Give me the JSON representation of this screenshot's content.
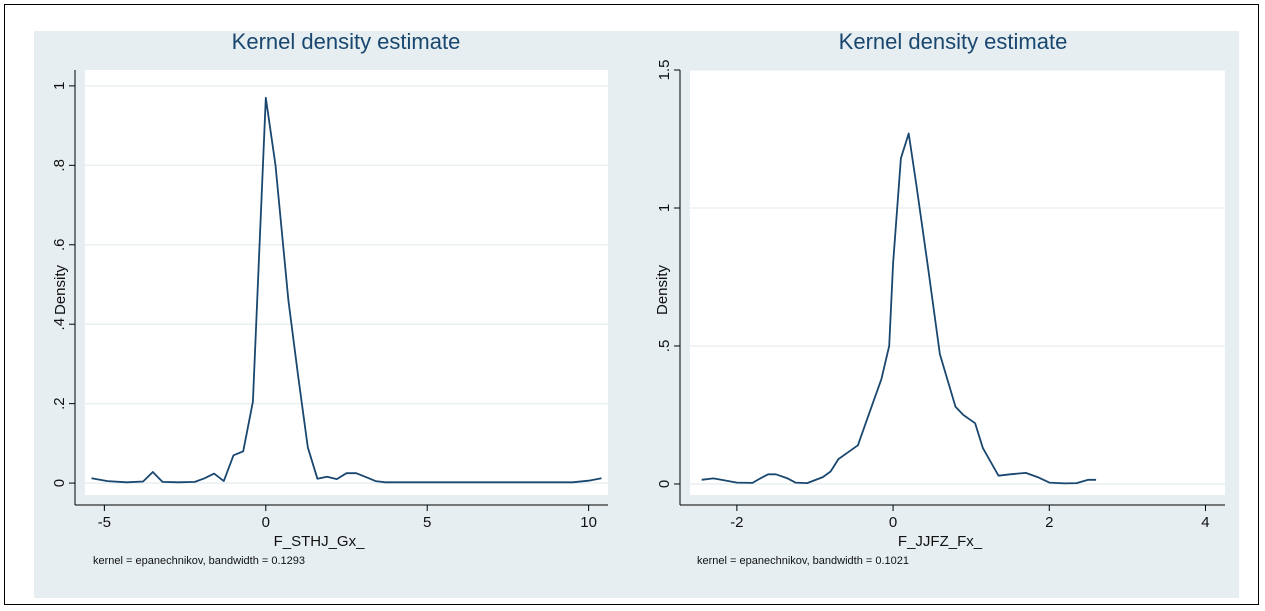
{
  "chart_data": [
    {
      "type": "line",
      "title": "Kernel density estimate",
      "xlabel": "F_STHJ_Gx_",
      "ylabel": "Density",
      "note": "kernel = epanechnikov, bandwidth = 0.1293",
      "xlim": [
        -5.6,
        10.6
      ],
      "ylim": [
        -0.03,
        1.04
      ],
      "xticks": [
        {
          "v": -5,
          "label": "-5"
        },
        {
          "v": 0,
          "label": "0"
        },
        {
          "v": 5,
          "label": "5"
        },
        {
          "v": 10,
          "label": "10"
        }
      ],
      "yticks": [
        {
          "v": 0,
          "label": "0"
        },
        {
          "v": 0.2,
          "label": ".2"
        },
        {
          "v": 0.4,
          "label": ".4"
        },
        {
          "v": 0.6,
          "label": ".6"
        },
        {
          "v": 0.8,
          "label": ".8"
        },
        {
          "v": 1,
          "label": "1"
        }
      ],
      "grid": true,
      "series": [
        {
          "x": [
            -5.4,
            -4.9,
            -4.3,
            -3.8,
            -3.5,
            -3.2,
            -2.7,
            -2.2,
            -1.9,
            -1.6,
            -1.3,
            -1.0,
            -0.7,
            -0.4,
            0.0,
            0.3,
            0.7,
            1.0,
            1.3,
            1.6,
            1.9,
            2.2,
            2.5,
            2.8,
            3.1,
            3.4,
            3.7,
            4.5,
            6.0,
            8.0,
            9.5,
            10.0,
            10.4
          ],
          "y": [
            0.012,
            0.005,
            0.002,
            0.004,
            0.028,
            0.003,
            0.002,
            0.003,
            0.012,
            0.024,
            0.005,
            0.07,
            0.08,
            0.205,
            0.97,
            0.8,
            0.46,
            0.27,
            0.09,
            0.011,
            0.016,
            0.01,
            0.025,
            0.025,
            0.015,
            0.005,
            0.002,
            0.002,
            0.002,
            0.002,
            0.002,
            0.006,
            0.012
          ]
        }
      ]
    },
    {
      "type": "line",
      "title": "Kernel density estimate",
      "xlabel": "F_JJFZ_Fx_",
      "ylabel": "Density",
      "note": "kernel = epanechnikov, bandwidth = 0.1021",
      "xlim": [
        -2.6,
        4.25
      ],
      "ylim": [
        -0.04,
        1.5
      ],
      "xticks": [
        {
          "v": -2,
          "label": "-2"
        },
        {
          "v": 0,
          "label": "0"
        },
        {
          "v": 2,
          "label": "2"
        },
        {
          "v": 4,
          "label": "4"
        }
      ],
      "yticks": [
        {
          "v": 0,
          "label": "0"
        },
        {
          "v": 0.5,
          "label": ".5"
        },
        {
          "v": 1,
          "label": "1"
        },
        {
          "v": 1.5,
          "label": "1.5"
        }
      ],
      "grid": true,
      "series": [
        {
          "x": [
            -2.45,
            -2.3,
            -2.2,
            -2.0,
            -1.8,
            -1.7,
            -1.6,
            -1.5,
            -1.35,
            -1.25,
            -1.1,
            -0.9,
            -0.8,
            -0.7,
            -0.55,
            -0.45,
            -0.3,
            -0.15,
            -0.05,
            0.0,
            0.1,
            0.2,
            0.3,
            0.45,
            0.6,
            0.8,
            0.9,
            1.05,
            1.15,
            1.35,
            1.5,
            1.7,
            1.85,
            2.0,
            2.2,
            2.35,
            2.5,
            2.6
          ],
          "y": [
            0.015,
            0.02,
            0.015,
            0.005,
            0.004,
            0.02,
            0.035,
            0.035,
            0.02,
            0.005,
            0.003,
            0.025,
            0.045,
            0.09,
            0.12,
            0.14,
            0.26,
            0.38,
            0.5,
            0.8,
            1.18,
            1.27,
            1.08,
            0.78,
            0.47,
            0.28,
            0.25,
            0.22,
            0.13,
            0.03,
            0.035,
            0.04,
            0.025,
            0.005,
            0.002,
            0.003,
            0.015,
            0.015
          ]
        }
      ]
    }
  ]
}
